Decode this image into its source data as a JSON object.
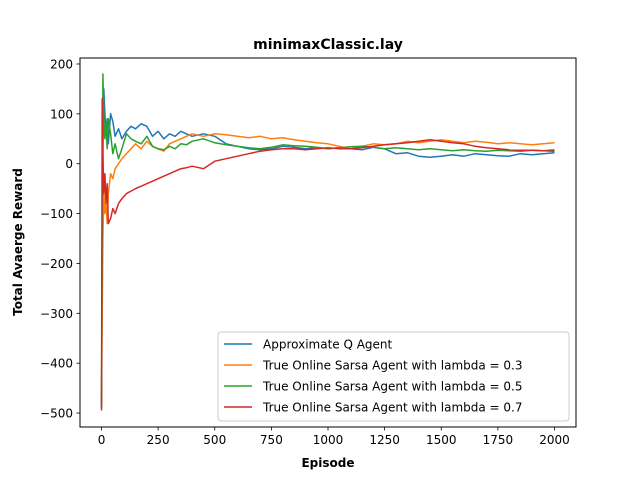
{
  "chart_data": {
    "type": "line",
    "title": "minimaxClassic.lay",
    "xlabel": "Episode",
    "ylabel": "Total Avaerge Reward",
    "xlim": [
      -95,
      2095
    ],
    "ylim": [
      -528,
      212
    ],
    "xticks": [
      0,
      250,
      500,
      750,
      1000,
      1250,
      1500,
      1750,
      2000
    ],
    "yticks": [
      -500,
      -400,
      -300,
      -200,
      -100,
      0,
      100,
      200
    ],
    "ytick_labels": [
      "−500",
      "−400",
      "−300",
      "−200",
      "−100",
      "0",
      "100",
      "200"
    ],
    "grid": false,
    "legend_position": "lower-right",
    "series": [
      {
        "name": "Approximate Q Agent",
        "color": "#1f77b4",
        "x": [
          0,
          3,
          6,
          10,
          15,
          20,
          25,
          30,
          40,
          50,
          60,
          75,
          90,
          110,
          130,
          150,
          175,
          200,
          225,
          250,
          275,
          300,
          325,
          350,
          375,
          400,
          450,
          500,
          550,
          600,
          650,
          700,
          750,
          800,
          850,
          900,
          950,
          1000,
          1050,
          1100,
          1150,
          1200,
          1250,
          1300,
          1350,
          1400,
          1450,
          1500,
          1550,
          1600,
          1650,
          1700,
          1750,
          1800,
          1850,
          1900,
          1950,
          2000
        ],
        "y": [
          -490,
          -150,
          20,
          150,
          100,
          60,
          90,
          40,
          100,
          85,
          55,
          70,
          50,
          65,
          75,
          70,
          80,
          75,
          55,
          65,
          50,
          60,
          55,
          65,
          60,
          55,
          60,
          55,
          40,
          35,
          30,
          28,
          30,
          35,
          33,
          30,
          32,
          30,
          32,
          30,
          28,
          33,
          30,
          20,
          22,
          15,
          13,
          15,
          18,
          15,
          20,
          18,
          16,
          15,
          20,
          18,
          20,
          22
        ]
      },
      {
        "name": "True Online Sarsa Agent with lambda = 0.3",
        "color": "#ff7f0e",
        "x": [
          0,
          3,
          6,
          10,
          15,
          20,
          25,
          30,
          40,
          50,
          60,
          75,
          90,
          110,
          130,
          150,
          175,
          200,
          225,
          250,
          275,
          300,
          325,
          350,
          375,
          400,
          450,
          500,
          550,
          600,
          650,
          700,
          750,
          800,
          850,
          900,
          950,
          1000,
          1050,
          1100,
          1150,
          1200,
          1250,
          1300,
          1350,
          1400,
          1450,
          1500,
          1550,
          1600,
          1650,
          1700,
          1750,
          1800,
          1850,
          1900,
          1950,
          2000
        ],
        "y": [
          -480,
          -300,
          -150,
          -50,
          -100,
          -80,
          -120,
          -60,
          -20,
          -30,
          -10,
          0,
          10,
          20,
          30,
          40,
          30,
          45,
          35,
          30,
          25,
          40,
          45,
          50,
          55,
          60,
          55,
          60,
          58,
          55,
          52,
          55,
          50,
          52,
          48,
          45,
          42,
          40,
          35,
          30,
          35,
          40,
          38,
          40,
          45,
          42,
          45,
          48,
          45,
          42,
          45,
          43,
          40,
          42,
          40,
          38,
          40,
          42
        ]
      },
      {
        "name": "True Online Sarsa Agent with lambda = 0.5",
        "color": "#2ca02c",
        "x": [
          0,
          3,
          6,
          10,
          15,
          20,
          25,
          30,
          40,
          50,
          60,
          75,
          90,
          110,
          130,
          150,
          175,
          200,
          225,
          250,
          275,
          300,
          325,
          350,
          375,
          400,
          450,
          500,
          550,
          600,
          650,
          700,
          750,
          800,
          850,
          900,
          950,
          1000,
          1050,
          1100,
          1150,
          1200,
          1250,
          1300,
          1350,
          1400,
          1450,
          1500,
          1550,
          1600,
          1650,
          1700,
          1750,
          1800,
          1850,
          1900,
          1950,
          2000
        ],
        "y": [
          -480,
          -200,
          180,
          100,
          50,
          80,
          30,
          90,
          60,
          20,
          40,
          10,
          30,
          60,
          50,
          45,
          40,
          55,
          35,
          30,
          28,
          35,
          30,
          40,
          38,
          45,
          50,
          42,
          38,
          35,
          32,
          30,
          33,
          38,
          36,
          35,
          33,
          30,
          32,
          34,
          35,
          33,
          30,
          32,
          30,
          28,
          30,
          28,
          26,
          28,
          26,
          25,
          27,
          26,
          25,
          27,
          26,
          28
        ]
      },
      {
        "name": "True Online Sarsa Agent with lambda = 0.7",
        "color": "#d62728",
        "x": [
          0,
          3,
          6,
          10,
          15,
          20,
          25,
          30,
          40,
          50,
          60,
          75,
          90,
          110,
          130,
          150,
          175,
          200,
          225,
          250,
          275,
          300,
          325,
          350,
          375,
          400,
          450,
          500,
          550,
          600,
          650,
          700,
          750,
          800,
          850,
          900,
          950,
          1000,
          1050,
          1100,
          1150,
          1200,
          1250,
          1300,
          1350,
          1400,
          1450,
          1500,
          1550,
          1600,
          1650,
          1700,
          1750,
          1800,
          1850,
          1900,
          1950,
          2000
        ],
        "y": [
          -495,
          130,
          20,
          -60,
          -20,
          -80,
          -40,
          -120,
          -110,
          -90,
          -100,
          -80,
          -70,
          -60,
          -55,
          -50,
          -45,
          -40,
          -35,
          -30,
          -25,
          -20,
          -15,
          -10,
          -8,
          -5,
          -10,
          5,
          10,
          15,
          20,
          25,
          28,
          30,
          30,
          28,
          30,
          32,
          30,
          30,
          32,
          35,
          38,
          40,
          42,
          45,
          48,
          45,
          42,
          40,
          35,
          32,
          30,
          28,
          27,
          27,
          26,
          25
        ]
      }
    ]
  }
}
